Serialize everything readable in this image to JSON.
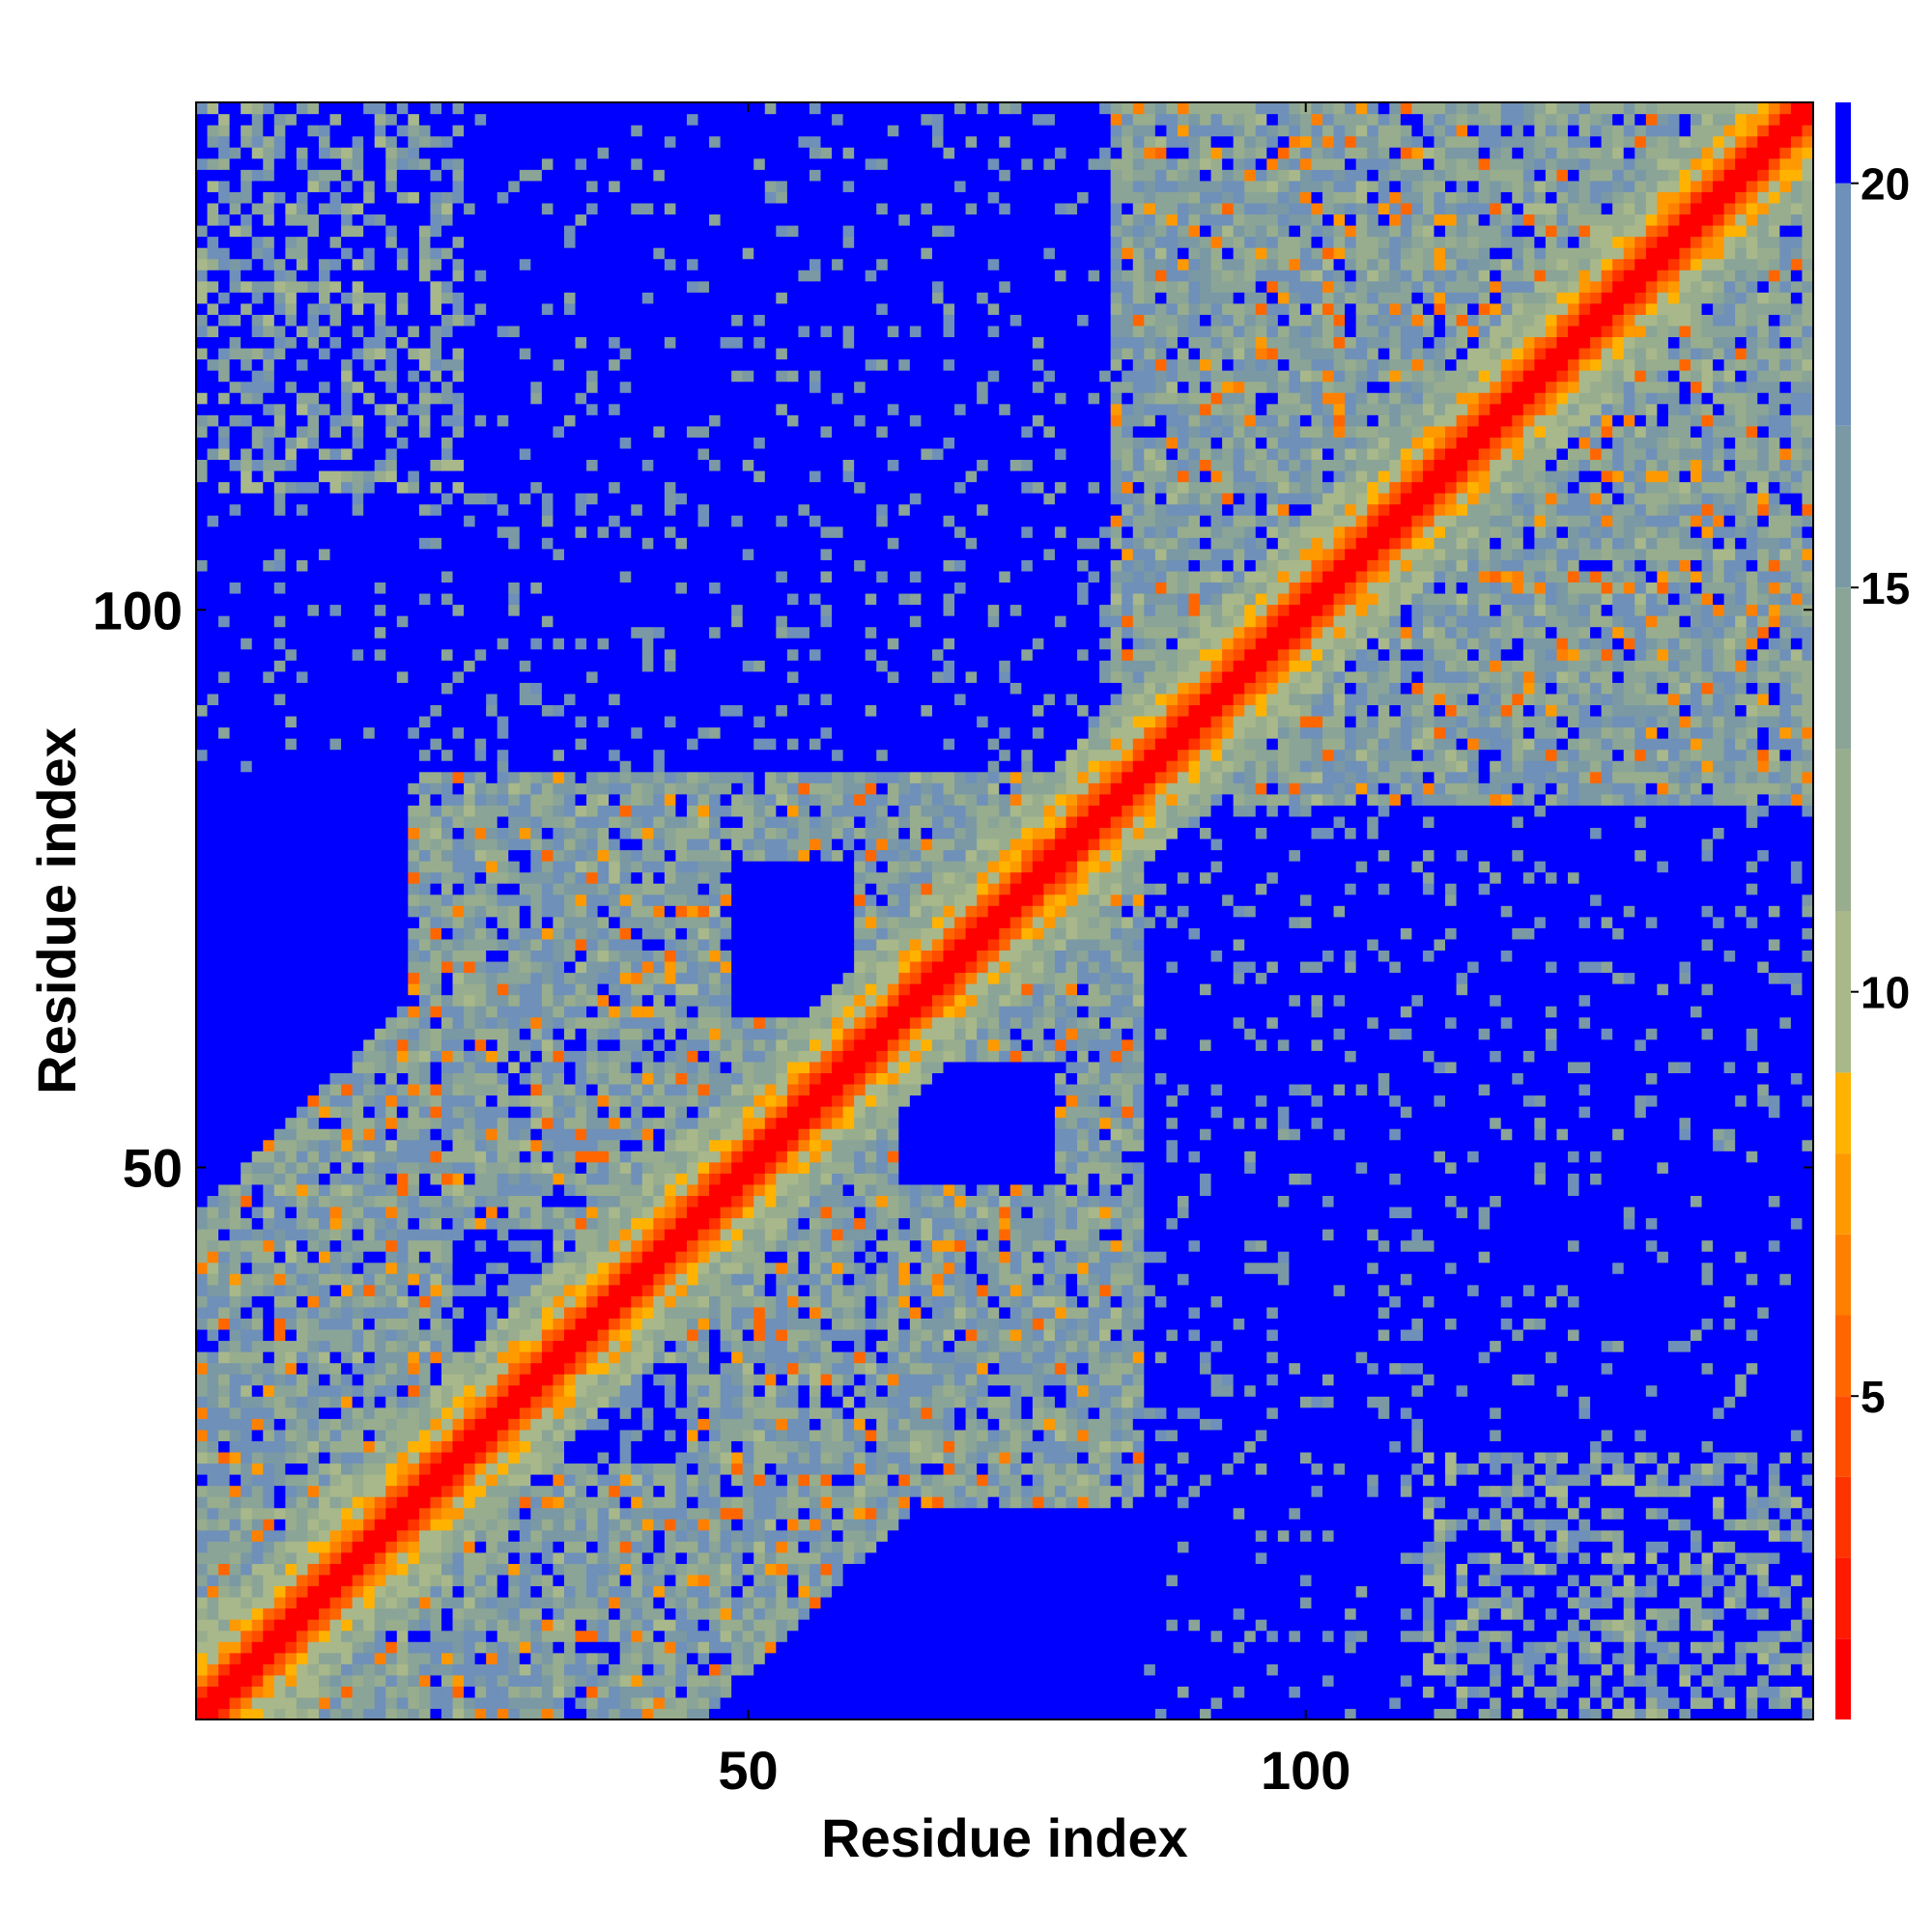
{
  "chart_data": {
    "type": "heatmap",
    "title": "",
    "xlabel": "Residue index",
    "ylabel": "Residue index",
    "n_residues": 145,
    "xlim": [
      1,
      145
    ],
    "ylim": [
      1,
      145
    ],
    "x_ticks": [
      50,
      100
    ],
    "y_ticks": [
      50,
      100
    ],
    "colorbar": {
      "ticks": [
        5,
        10,
        15,
        20
      ],
      "range": [
        1,
        21
      ],
      "colors": [
        {
          "min": 0,
          "max": 2,
          "color": "#ff0000"
        },
        {
          "min": 2,
          "max": 3,
          "color": "#ff1a00"
        },
        {
          "min": 3,
          "max": 4,
          "color": "#ff3300"
        },
        {
          "min": 4,
          "max": 5,
          "color": "#ff4d00"
        },
        {
          "min": 5,
          "max": 6,
          "color": "#ff6600"
        },
        {
          "min": 6,
          "max": 7,
          "color": "#ff8000"
        },
        {
          "min": 7,
          "max": 8,
          "color": "#ff9900"
        },
        {
          "min": 8,
          "max": 9,
          "color": "#ffb300"
        },
        {
          "min": 9,
          "max": 11,
          "color": "#a8b88a"
        },
        {
          "min": 11,
          "max": 13,
          "color": "#98ad8e"
        },
        {
          "min": 13,
          "max": 15,
          "color": "#8aa497"
        },
        {
          "min": 15,
          "max": 17,
          "color": "#7a99a4"
        },
        {
          "min": 17,
          "max": 20,
          "color": "#6f90b8"
        },
        {
          "min": 20,
          "max": 99,
          "color": "#0000ff"
        }
      ]
    },
    "description_of_values": "Symmetric residue-residue distance map (values in colorbar units); red diagonal band of near residues, orange/green contacts within two domains (residues ~10-85 and ~85-145), blue background beyond cutoff",
    "domains": [
      {
        "start": 1,
        "end": 85
      },
      {
        "start": 83,
        "end": 145
      }
    ]
  }
}
